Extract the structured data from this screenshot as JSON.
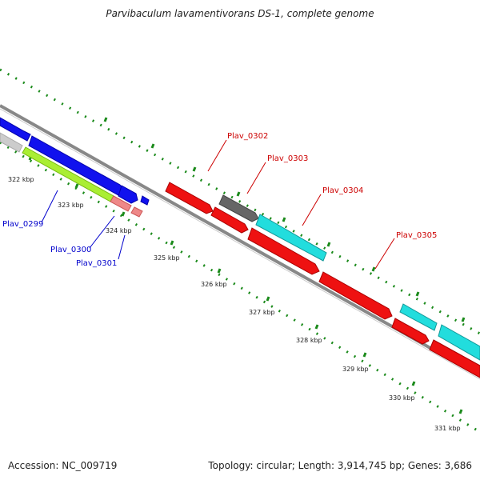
{
  "title": "Parvibaculum lavamentivorans DS-1, complete genome",
  "footer": {
    "accession": "Accession: NC_009719",
    "topology": "Topology: circular; Length: 3,914,745 bp; Genes: 3,686"
  },
  "ticks": [
    "322 kbp",
    "323 kbp",
    "324 kbp",
    "325 kbp",
    "326 kbp",
    "327 kbp",
    "328 kbp",
    "329 kbp",
    "330 kbp",
    "331 kbp"
  ],
  "gene_labels": [
    {
      "text": "Plav_0299",
      "color": "#0000cc"
    },
    {
      "text": "Plav_0300",
      "color": "#0000cc"
    },
    {
      "text": "Plav_0301",
      "color": "#0000cc"
    },
    {
      "text": "Plav_0302",
      "color": "#cc0000"
    },
    {
      "text": "Plav_0303",
      "color": "#cc0000"
    },
    {
      "text": "Plav_0304",
      "color": "#cc0000"
    },
    {
      "text": "Plav_0305",
      "color": "#cc0000"
    }
  ],
  "colors": {
    "backbone": "#888888",
    "tick_marks": "#1a8a1a",
    "forward_gene": "#ee1111",
    "reverse_gene": "#1111ee",
    "cyan_feature": "#22dddd",
    "gray_feature": "#666666",
    "green_feature": "#aaee33",
    "pink_feature": "#ee8888"
  }
}
